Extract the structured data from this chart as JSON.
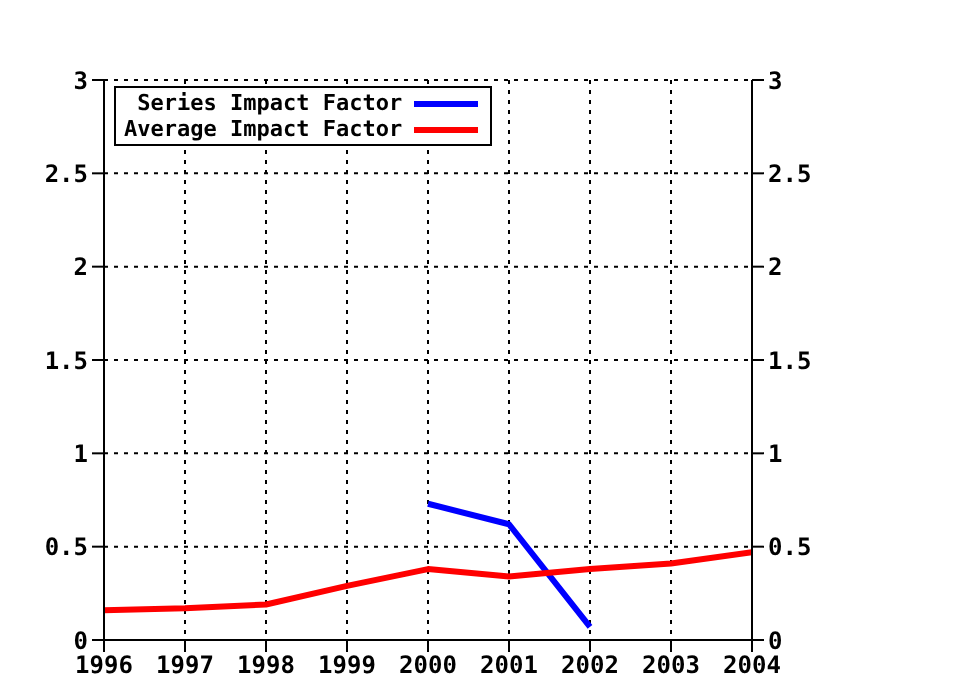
{
  "chart_data": {
    "type": "line",
    "x": [
      1996,
      1997,
      1998,
      1999,
      2000,
      2001,
      2002,
      2003,
      2004
    ],
    "series": [
      {
        "name": "Series Impact Factor",
        "color": "#0000ff",
        "values": [
          null,
          null,
          null,
          null,
          0.73,
          0.62,
          0.07,
          null,
          null
        ]
      },
      {
        "name": "Average Impact Factor",
        "color": "#ff0000",
        "values": [
          0.16,
          0.17,
          0.19,
          0.29,
          0.38,
          0.34,
          0.38,
          0.41,
          0.47
        ]
      }
    ],
    "xlim": [
      1996,
      2004
    ],
    "xticks": [
      1996,
      1997,
      1998,
      1999,
      2000,
      2001,
      2002,
      2003,
      2004
    ],
    "ylim": [
      0,
      3
    ],
    "yticks": [
      0,
      0.5,
      1,
      1.5,
      2,
      2.5,
      3
    ],
    "y2lim": [
      0,
      3
    ],
    "y2ticks": [
      0,
      0.5,
      1,
      1.5,
      2,
      2.5,
      3
    ],
    "grid": true,
    "legend": "top left",
    "marker": "none",
    "line_style": "solid"
  }
}
